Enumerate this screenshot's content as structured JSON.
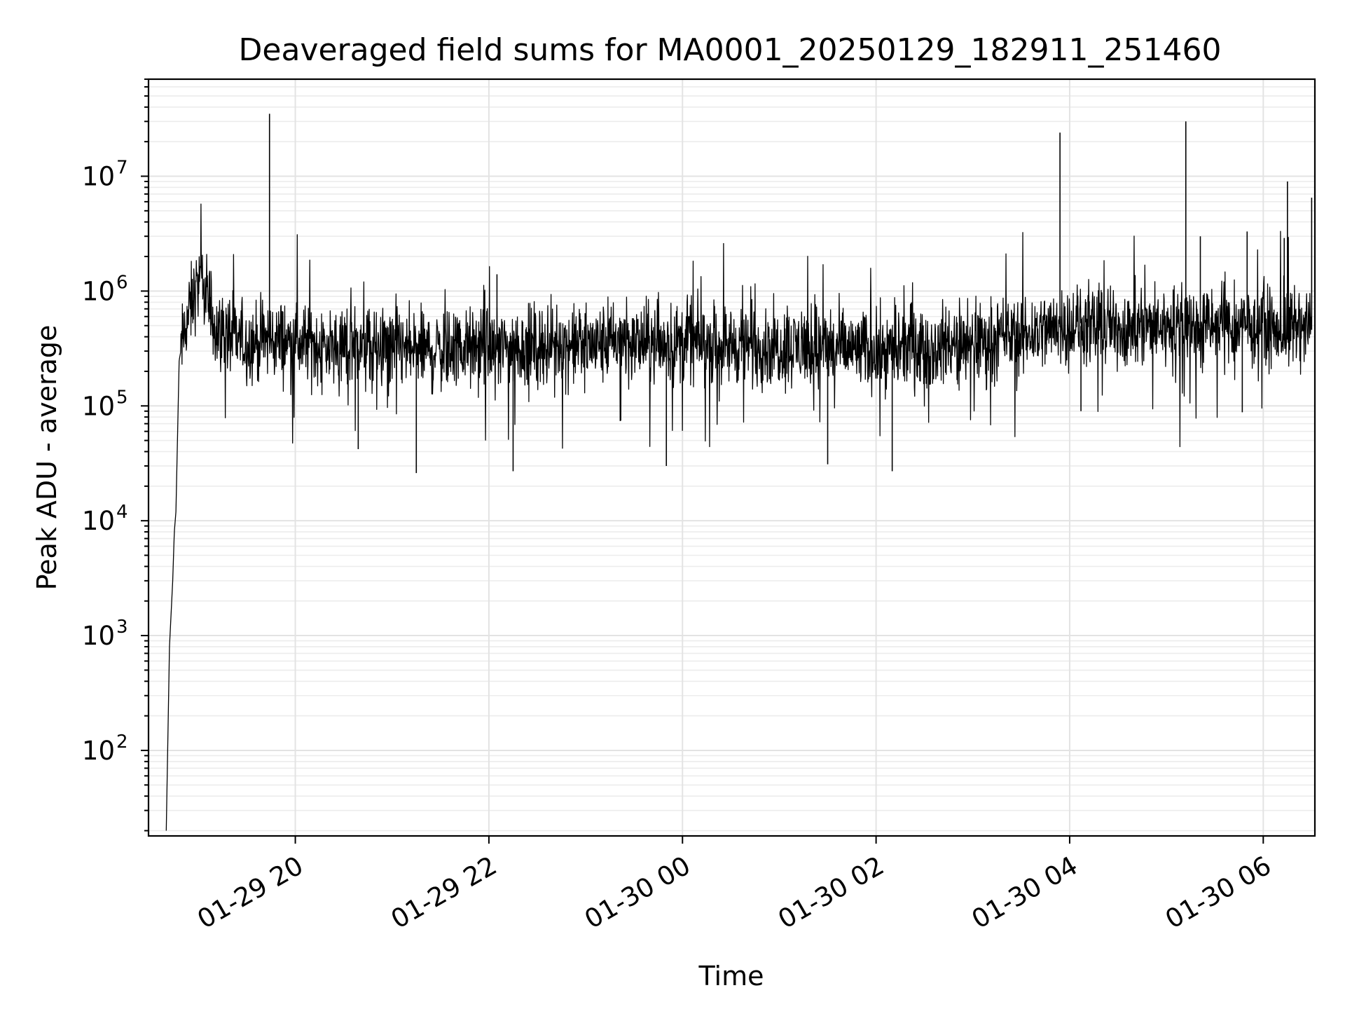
{
  "chart_data": {
    "type": "line",
    "title": "Deaveraged field sums for MA0001_20250129_182911_251460",
    "xlabel": "Time",
    "ylabel": "Peak ADU - average",
    "yscale": "log",
    "xlim": [
      "2025-01-29 18:29",
      "2025-01-30 06:32"
    ],
    "ylim": [
      18,
      70000000
    ],
    "grid": "on (major and minor)",
    "legend": "none",
    "x_tick_labels": [
      "01-29 20",
      "01-29 22",
      "01-30 00",
      "01-30 02",
      "01-30 04",
      "01-30 06"
    ],
    "x_ticks": [
      "2025-01-29 20:00",
      "2025-01-29 22:00",
      "2025-01-30 00:00",
      "2025-01-30 02:00",
      "2025-01-30 04:00",
      "2025-01-30 06:00"
    ],
    "y_ticks": [
      {
        "base": "10",
        "exp": "2",
        "value": 100
      },
      {
        "base": "10",
        "exp": "3",
        "value": 1000
      },
      {
        "base": "10",
        "exp": "4",
        "value": 10000
      },
      {
        "base": "10",
        "exp": "5",
        "value": 100000
      },
      {
        "base": "10",
        "exp": "6",
        "value": 1000000
      },
      {
        "base": "10",
        "exp": "7",
        "value": 10000000
      }
    ],
    "series_color": "#000000",
    "series": [
      {
        "x": [
          "2025-01-29 18:40",
          "2025-01-29 18:42",
          "2025-01-29 18:44",
          "2025-01-29 18:45",
          "2025-01-29 18:46",
          "2025-01-29 18:48",
          "2025-01-29 18:52",
          "2025-01-29 18:56",
          "2025-01-29 19:00",
          "2025-01-29 19:05",
          "2025-01-29 19:08",
          "2025-01-29 19:12",
          "2025-01-29 19:20",
          "2025-01-29 19:30",
          "2025-01-29 19:45",
          "2025-01-29 20:00",
          "2025-01-29 20:30",
          "2025-01-29 21:00",
          "2025-01-29 21:30",
          "2025-01-29 22:00",
          "2025-01-29 22:30",
          "2025-01-29 23:00",
          "2025-01-29 23:30",
          "2025-01-30 00:00",
          "2025-01-30 00:30",
          "2025-01-30 01:00",
          "2025-01-30 01:30",
          "2025-01-30 02:00",
          "2025-01-30 02:30",
          "2025-01-30 03:00",
          "2025-01-30 03:30",
          "2025-01-30 04:00",
          "2025-01-30 04:30",
          "2025-01-30 05:00",
          "2025-01-30 05:30",
          "2025-01-30 06:00",
          "2025-01-30 06:30"
        ],
        "y": [
          20,
          800,
          3000,
          8000,
          12000,
          250000,
          500000,
          800000,
          1200000,
          900000,
          600000,
          450000,
          400000,
          350000,
          380000,
          360000,
          320000,
          300000,
          310000,
          320000,
          330000,
          340000,
          350000,
          360000,
          340000,
          330000,
          320000,
          300000,
          310000,
          340000,
          420000,
          500000,
          480000,
          500000,
          490000,
          470000,
          460000
        ]
      }
    ],
    "spikes": [
      {
        "x": "2025-01-29 19:44",
        "y": 35000000
      },
      {
        "x": "2025-01-29 22:05",
        "y": 1400000
      },
      {
        "x": "2025-01-30 03:54",
        "y": 24000000
      },
      {
        "x": "2025-01-30 05:12",
        "y": 30000000
      },
      {
        "x": "2025-01-30 05:21",
        "y": 3000000
      },
      {
        "x": "2025-01-30 05:50",
        "y": 3300000
      },
      {
        "x": "2025-01-30 06:13",
        "y": 2900000
      },
      {
        "x": "2025-01-30 06:15",
        "y": 9000000
      },
      {
        "x": "2025-01-30 06:30",
        "y": 6500000
      }
    ],
    "dips": [
      {
        "x": "2025-01-29 20:39",
        "y": 42000
      },
      {
        "x": "2025-01-29 21:15",
        "y": 26000
      },
      {
        "x": "2025-01-29 22:15",
        "y": 27000
      },
      {
        "x": "2025-01-29 23:50",
        "y": 30000
      },
      {
        "x": "2025-01-30 01:30",
        "y": 31000
      },
      {
        "x": "2025-01-30 02:10",
        "y": 27000
      },
      {
        "x": "2025-01-30 04:07",
        "y": 90000
      },
      {
        "x": "2025-01-30 05:47",
        "y": 88000
      }
    ]
  }
}
